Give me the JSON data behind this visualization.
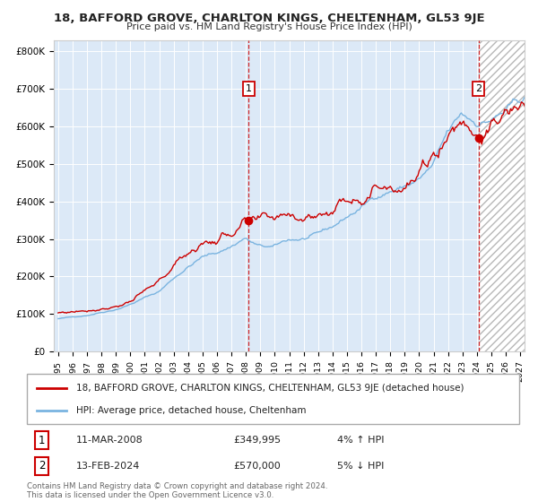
{
  "title_line1": "18, BAFFORD GROVE, CHARLTON KINGS, CHELTENHAM, GL53 9JE",
  "title_line2": "Price paid vs. HM Land Registry's House Price Index (HPI)",
  "ylabel_ticks": [
    "£0",
    "£100K",
    "£200K",
    "£300K",
    "£400K",
    "£500K",
    "£600K",
    "£700K",
    "£800K"
  ],
  "ytick_values": [
    0,
    100000,
    200000,
    300000,
    400000,
    500000,
    600000,
    700000,
    800000
  ],
  "ylim": [
    0,
    830000
  ],
  "xlim_start": 1994.7,
  "xlim_end": 2027.3,
  "hpi_color": "#7ab4e0",
  "price_color": "#cc0000",
  "bg_color": "#dce9f7",
  "marker1_date": 2008.19,
  "marker1_price": 349995,
  "marker1_label": "1",
  "marker2_date": 2024.12,
  "marker2_price": 570000,
  "marker2_label": "2",
  "vline1_x": 2008.19,
  "vline2_x": 2024.12,
  "legend_price_label": "18, BAFFORD GROVE, CHARLTON KINGS, CHELTENHAM, GL53 9JE (detached house)",
  "legend_hpi_label": "HPI: Average price, detached house, Cheltenham",
  "note1_label": "1",
  "note1_date": "11-MAR-2008",
  "note1_price": "£349,995",
  "note1_hpi": "4% ↑ HPI",
  "note2_label": "2",
  "note2_date": "13-FEB-2024",
  "note2_price": "£570,000",
  "note2_hpi": "5% ↓ HPI",
  "footer": "Contains HM Land Registry data © Crown copyright and database right 2024.\nThis data is licensed under the Open Government Licence v3.0.",
  "xtick_years": [
    1995,
    1996,
    1997,
    1998,
    1999,
    2000,
    2001,
    2002,
    2003,
    2004,
    2005,
    2006,
    2007,
    2008,
    2009,
    2010,
    2011,
    2012,
    2013,
    2014,
    2015,
    2016,
    2017,
    2018,
    2019,
    2020,
    2021,
    2022,
    2023,
    2024,
    2025,
    2026,
    2027
  ]
}
